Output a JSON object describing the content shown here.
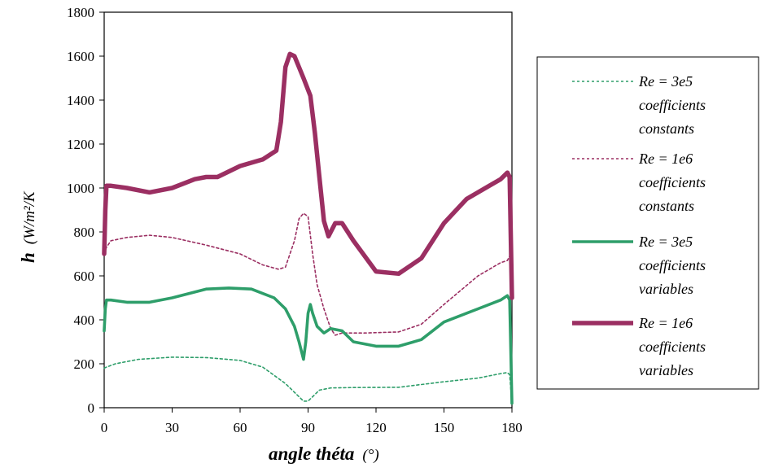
{
  "chart_data": {
    "type": "line",
    "xlabel": "angle théta",
    "xlabel_unit": "(°)",
    "ylabel_bold": "h",
    "ylabel_unit": "(W/m²/K",
    "xlim": [
      0,
      180
    ],
    "ylim": [
      0,
      1800
    ],
    "xticks": [
      "0",
      "30",
      "60",
      "90",
      "120",
      "150",
      "180"
    ],
    "yticks": [
      "0",
      "200",
      "400",
      "600",
      "800",
      "1000",
      "1200",
      "1400",
      "1600",
      "1800"
    ],
    "grid": false,
    "legend_position": "right",
    "series": [
      {
        "name": "Re = 3e5 coefficients constants",
        "legend_lines": [
          "Re = 3e5",
          "coefficients",
          "constants"
        ],
        "color": "#2e9e6a",
        "style": "dotted-thin",
        "x": [
          0,
          1,
          5,
          15,
          30,
          45,
          60,
          70,
          80,
          85,
          88,
          90,
          92,
          95,
          100,
          110,
          130,
          150,
          165,
          175,
          178,
          179,
          180
        ],
        "y": [
          180,
          185,
          200,
          220,
          230,
          228,
          215,
          185,
          110,
          60,
          30,
          30,
          50,
          80,
          90,
          92,
          93,
          118,
          135,
          155,
          160,
          150,
          20
        ]
      },
      {
        "name": "Re = 1e6 coefficients constants",
        "legend_lines": [
          "Re = 1e6",
          "coefficients",
          "constants"
        ],
        "color": "#9b2f62",
        "style": "dotted-thin",
        "x": [
          0,
          1,
          3,
          10,
          20,
          30,
          45,
          60,
          70,
          77,
          80,
          84,
          86,
          88,
          90,
          92,
          94,
          97,
          100,
          102,
          105,
          115,
          130,
          140,
          150,
          165,
          175,
          178,
          179,
          180
        ],
        "y": [
          700,
          730,
          760,
          775,
          785,
          775,
          740,
          700,
          650,
          630,
          640,
          760,
          860,
          885,
          870,
          700,
          560,
          450,
          360,
          330,
          340,
          340,
          345,
          380,
          470,
          600,
          660,
          670,
          690,
          560
        ]
      },
      {
        "name": "Re = 3e5 coefficients variables",
        "legend_lines": [
          "Re = 3e5",
          "coefficients",
          "variables"
        ],
        "color": "#2e9e6a",
        "style": "solid-medium",
        "x": [
          0,
          0.5,
          1,
          3,
          10,
          20,
          30,
          45,
          55,
          65,
          75,
          80,
          84,
          86,
          88,
          89,
          90,
          91,
          92,
          94,
          97,
          100,
          105,
          110,
          120,
          130,
          140,
          150,
          165,
          175,
          178,
          179,
          180
        ],
        "y": [
          350,
          450,
          490,
          490,
          480,
          480,
          500,
          540,
          545,
          540,
          500,
          450,
          370,
          300,
          220,
          300,
          430,
          470,
          430,
          370,
          340,
          360,
          350,
          300,
          280,
          280,
          310,
          390,
          450,
          490,
          510,
          490,
          20
        ]
      },
      {
        "name": "Re = 1e6 coefficients variables",
        "legend_lines": [
          "Re = 1e6",
          "coefficients",
          "variables"
        ],
        "color": "#9b2f62",
        "style": "solid-thick",
        "x": [
          0,
          0.5,
          1,
          3,
          10,
          20,
          30,
          40,
          45,
          50,
          60,
          70,
          76,
          78,
          80,
          82,
          84,
          88,
          91,
          93,
          95,
          97,
          99,
          102,
          105,
          110,
          120,
          130,
          140,
          150,
          160,
          170,
          175,
          178,
          179,
          180
        ],
        "y": [
          700,
          900,
          1010,
          1010,
          1000,
          980,
          1000,
          1040,
          1050,
          1050,
          1100,
          1130,
          1170,
          1300,
          1550,
          1610,
          1600,
          1500,
          1420,
          1250,
          1050,
          850,
          780,
          840,
          840,
          760,
          620,
          610,
          680,
          840,
          950,
          1010,
          1040,
          1070,
          1050,
          500
        ]
      }
    ]
  }
}
